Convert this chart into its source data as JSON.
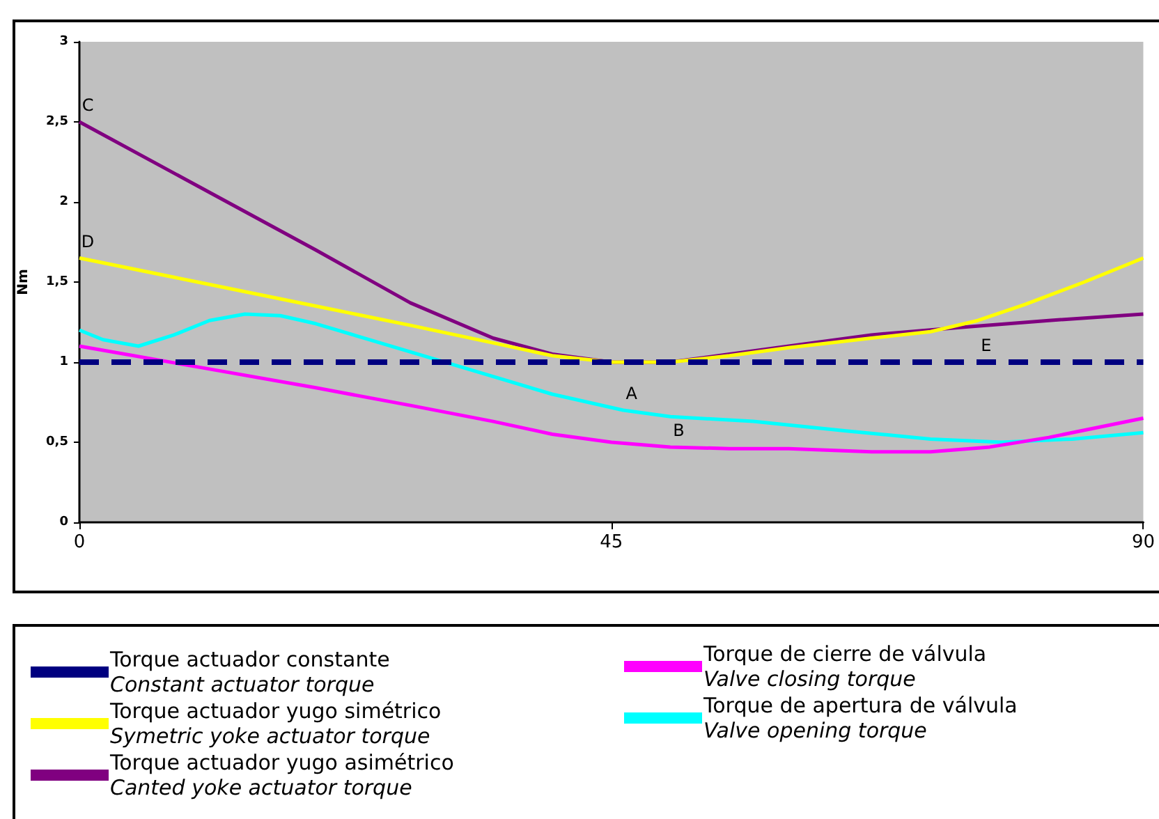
{
  "chart_data": {
    "type": "line",
    "ylabel": "Nm",
    "xlim": [
      0,
      90
    ],
    "xticks": [
      0,
      45,
      90
    ],
    "ylim": [
      0,
      3
    ],
    "yticks": [
      0,
      {
        "value": 0.5,
        "label": "0,5"
      },
      1,
      {
        "value": 1.5,
        "label": "1,5"
      },
      2,
      {
        "value": 2.5,
        "label": "2,5"
      },
      3
    ],
    "grid": false,
    "legend": "bottom",
    "marker": "none",
    "annotations": [
      {
        "text": "C",
        "x": 0,
        "y": 2.5
      },
      {
        "text": "D",
        "x": 0,
        "y": 1.65
      },
      {
        "text": "A",
        "x": 46,
        "y": 0.7
      },
      {
        "text": "B",
        "x": 50,
        "y": 0.47
      },
      {
        "text": "E",
        "x": 76,
        "y": 1.0
      }
    ],
    "series": [
      {
        "name": "Torque actuador constante\nConstant actuator torque",
        "color": "#000080",
        "line_style": "dashed",
        "x": [
          0,
          90
        ],
        "values": [
          1,
          1
        ]
      },
      {
        "name": "Torque actuador yugo simétrico\nSymetric yoke actuator torque",
        "color": "#ffff00",
        "x": [
          0,
          10,
          20,
          28,
          35,
          40,
          45,
          50,
          55,
          60,
          67,
          72,
          76,
          80,
          85,
          90
        ],
        "values": [
          1.65,
          1.5,
          1.35,
          1.23,
          1.12,
          1.04,
          1.0,
          1.0,
          1.04,
          1.09,
          1.15,
          1.19,
          1.26,
          1.36,
          1.5,
          1.65
        ]
      },
      {
        "name": "Torque actuador yugo asimétrico\nCanted yoke actuator torque",
        "color": "#800080",
        "x": [
          0,
          10,
          20,
          28,
          35,
          40,
          45,
          50,
          55,
          60,
          67,
          75,
          82,
          90
        ],
        "values": [
          2.5,
          2.1,
          1.7,
          1.37,
          1.15,
          1.05,
          1.0,
          1.0,
          1.05,
          1.1,
          1.17,
          1.22,
          1.26,
          1.3
        ]
      },
      {
        "name": "Torque de cierre de válvula\nValve closing torque",
        "color": "#ff00ff",
        "x": [
          0,
          10,
          20,
          28,
          35,
          40,
          45,
          50,
          55,
          60,
          67,
          72,
          77,
          82,
          90
        ],
        "values": [
          1.1,
          0.97,
          0.84,
          0.73,
          0.63,
          0.55,
          0.5,
          0.47,
          0.46,
          0.46,
          0.44,
          0.44,
          0.47,
          0.53,
          0.65
        ]
      },
      {
        "name": "Torque de apertura de válvula\nValve opening torque",
        "color": "#00ffff",
        "x": [
          0,
          2,
          5,
          8,
          11,
          14,
          17,
          20,
          25,
          30,
          35,
          40,
          46,
          50,
          57,
          65,
          72,
          78,
          84,
          90
        ],
        "values": [
          1.2,
          1.14,
          1.1,
          1.17,
          1.26,
          1.3,
          1.29,
          1.24,
          1.13,
          1.02,
          0.91,
          0.8,
          0.7,
          0.66,
          0.63,
          0.57,
          0.52,
          0.5,
          0.52,
          0.56
        ]
      }
    ]
  }
}
